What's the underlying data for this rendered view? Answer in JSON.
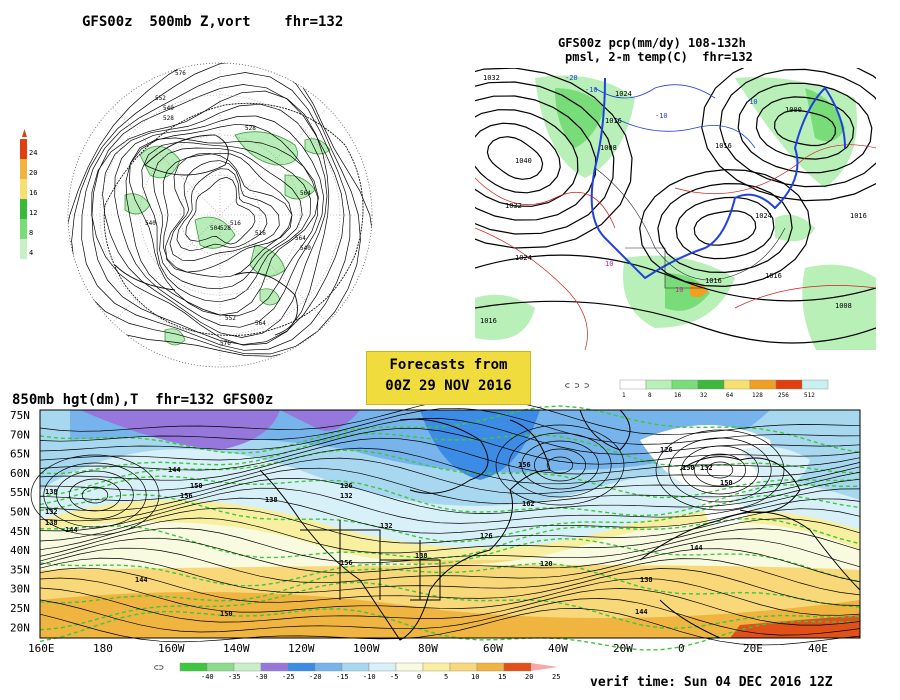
{
  "panel_500mb": {
    "title": "GFS00z  500mb Z,vort    fhr=132",
    "scale_values": [
      "24",
      "20",
      "16",
      "12",
      "8",
      "4"
    ],
    "contour_labels": [
      "576",
      "552",
      "540",
      "528",
      "528",
      "564",
      "528",
      "516",
      "504",
      "516",
      "540",
      "540",
      "552",
      "564",
      "564",
      "576",
      "576"
    ]
  },
  "panel_pcp": {
    "title_line1": "GFS00z pcp(mm/dy) 108-132h",
    "title_line2": "pmsl, 2-m temp(C)  fhr=132",
    "isobar_labels": [
      "1032",
      "1040",
      "1032",
      "1024",
      "1016",
      "1008",
      "1016",
      "1024",
      "1024",
      "1016",
      "1000",
      "1016",
      "1016",
      "1008",
      "1016"
    ],
    "temp_labels": [
      "-20",
      "-10",
      "-10",
      "-10",
      "10",
      "10"
    ],
    "scale_values": [
      "1",
      "8",
      "16",
      "32",
      "64",
      "128",
      "256",
      "512"
    ],
    "scale_colors": [
      "#ffffff",
      "#b8f0b8",
      "#78dc78",
      "#3cb83c",
      "#f8e070",
      "#f0a020",
      "#e04010",
      "#c8f0f0"
    ]
  },
  "forecast_box": {
    "line1": "Forecasts from",
    "line2": "00Z 29 NOV 2016",
    "color": "#f0dc3c"
  },
  "panel_850mb": {
    "title": "850mb hgt(dm),T  fhr=132 GFS00z",
    "lat_labels": [
      "75N",
      "70N",
      "65N",
      "60N",
      "55N",
      "50N",
      "45N",
      "40N",
      "35N",
      "30N",
      "25N",
      "20N"
    ],
    "lon_labels": [
      "160E",
      "180",
      "160W",
      "140W",
      "120W",
      "100W",
      "80W",
      "60W",
      "40W",
      "20W",
      "0",
      "20E",
      "40E"
    ],
    "contour_labels": [
      "144",
      "138",
      "132",
      "138",
      "144",
      "150",
      "156",
      "138",
      "132",
      "126",
      "132",
      "138",
      "144",
      "150",
      "156",
      "162",
      "156",
      "126",
      "120",
      "126",
      "132",
      "138",
      "144",
      "150",
      "144",
      "150"
    ],
    "scale_values": [
      "-40",
      "-35",
      "-30",
      "-25",
      "-20",
      "-15",
      "-10",
      "-5",
      "0",
      "5",
      "10",
      "15",
      "20",
      "25"
    ],
    "scale_colors": [
      "#3cc83c",
      "#8cdc8c",
      "#c8f0c8",
      "#9678dc",
      "#3c8ce6",
      "#78b4ec",
      "#a8d8f0",
      "#d8f0f8",
      "#f8fbe0",
      "#f8f0a0",
      "#f8d878",
      "#f0b440",
      "#e05018",
      "#f8a8a8"
    ]
  },
  "verif_time": "verif time: Sun 04 DEC 2016 12Z"
}
